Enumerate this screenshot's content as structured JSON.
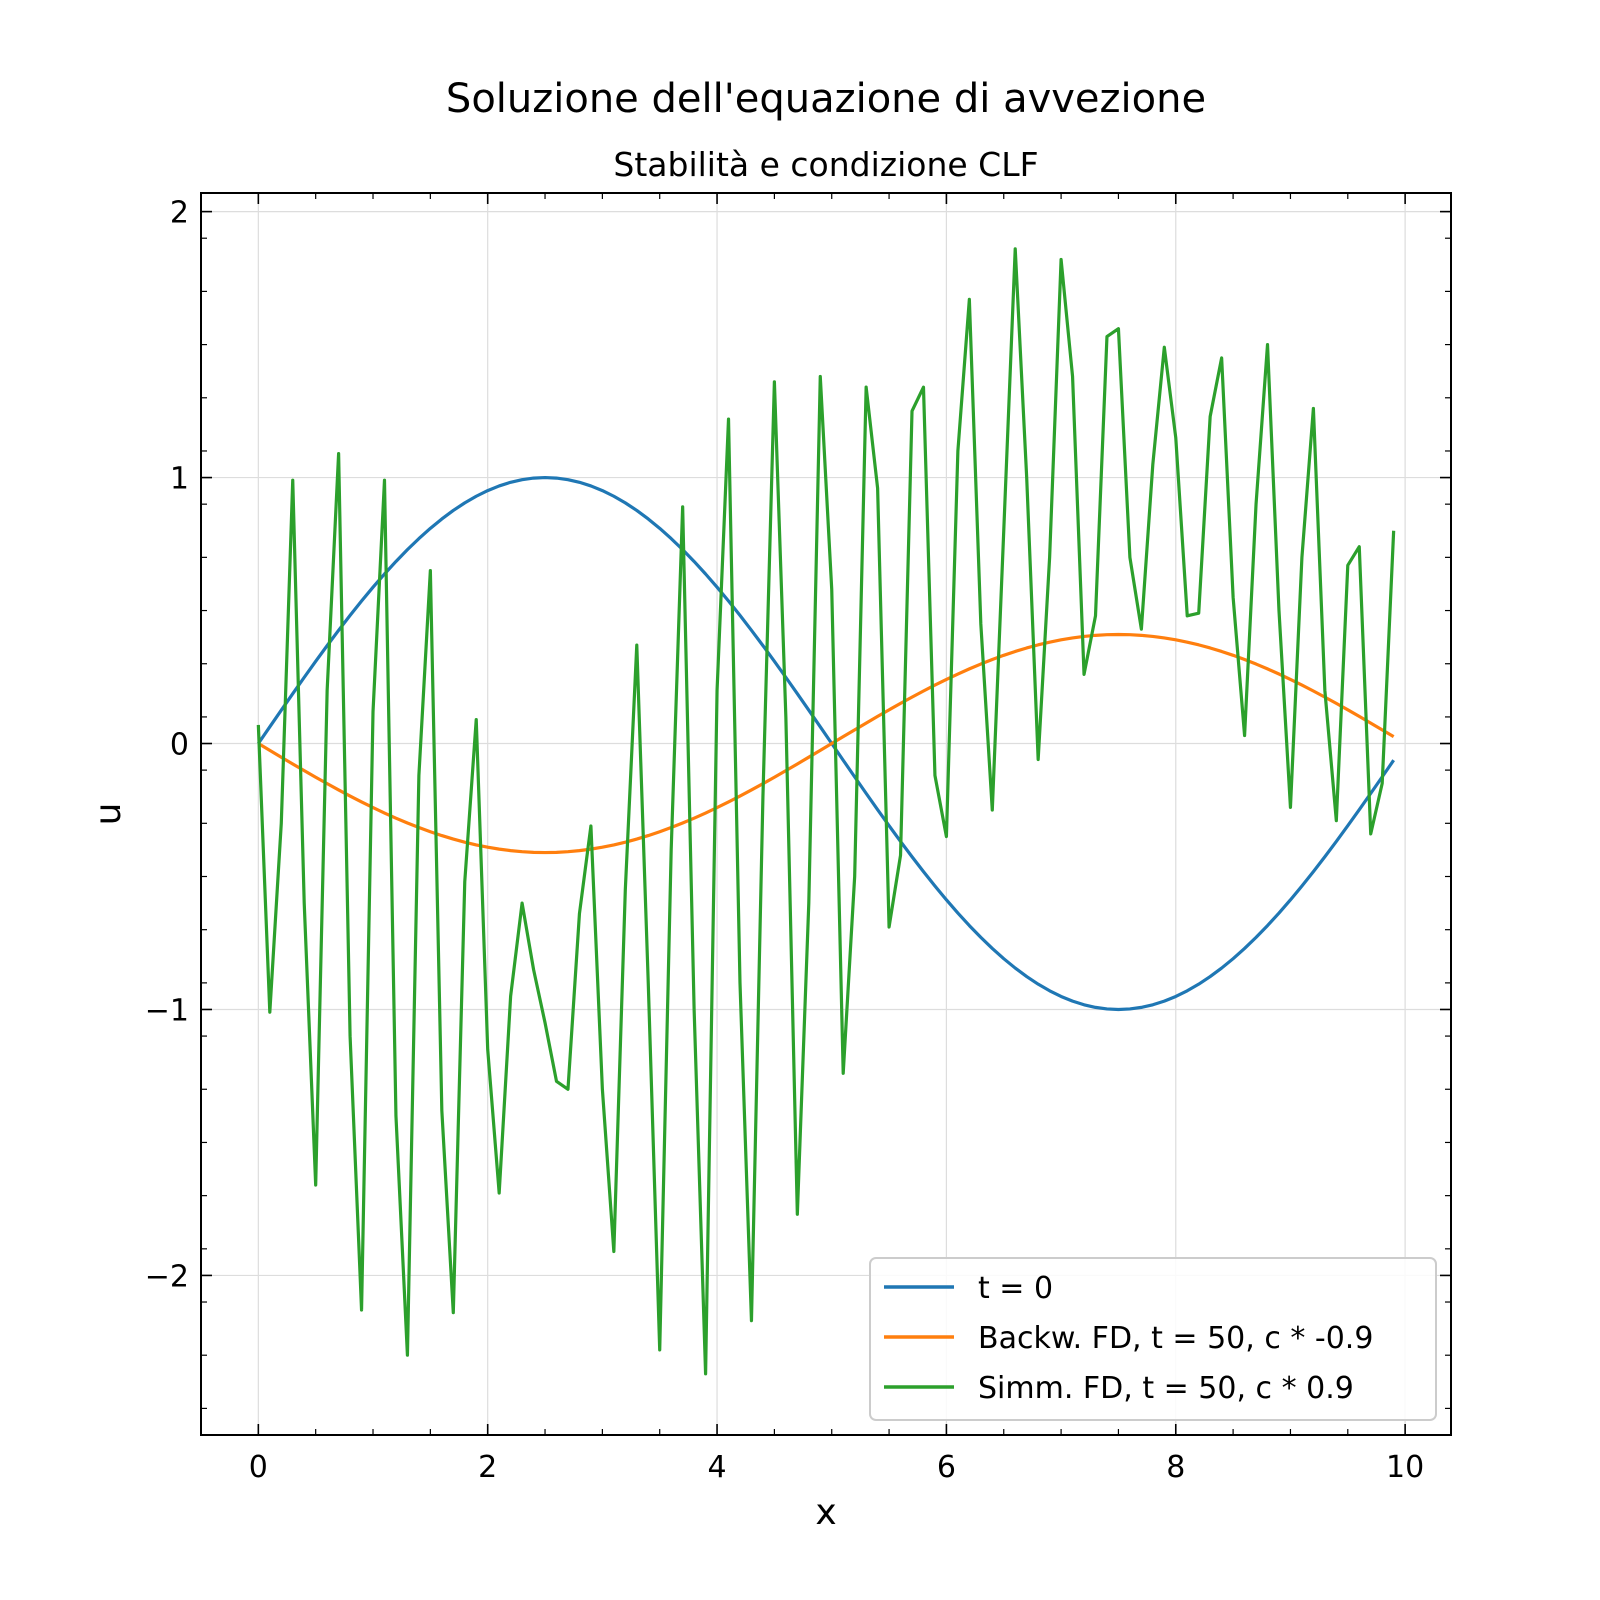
{
  "chart_data": {
    "type": "line",
    "title": "Soluzione dell'equazione di avvezione",
    "subtitle": "Stabilità e condizione CLF",
    "xlabel": "x",
    "ylabel": "u",
    "xlim": [
      -0.5,
      10.4
    ],
    "ylim": [
      -2.6,
      2.07
    ],
    "xticks": [
      0,
      2,
      4,
      6,
      8,
      10
    ],
    "xtick_labels": [
      "0",
      "2",
      "4",
      "6",
      "8",
      "10"
    ],
    "yticks": [
      -2,
      -1,
      0,
      1,
      2
    ],
    "ytick_labels": [
      "−2",
      "−1",
      "0",
      "1",
      "2"
    ],
    "grid": true,
    "legend_position": "lower-right",
    "series": [
      {
        "name": "t = 0",
        "color": "#1f77b4",
        "function": "sin(2*pi*x/10)",
        "x": [
          0.0,
          0.5,
          1.0,
          1.5,
          2.0,
          2.5,
          3.0,
          3.5,
          4.0,
          4.5,
          5.0,
          5.5,
          6.0,
          6.5,
          7.0,
          7.5,
          8.0,
          8.5,
          9.0,
          9.5,
          9.9
        ],
        "values": [
          0.0,
          0.309,
          0.588,
          0.809,
          0.951,
          1.0,
          0.951,
          0.809,
          0.588,
          0.309,
          0.0,
          -0.309,
          -0.588,
          -0.809,
          -0.951,
          -1.0,
          -0.951,
          -0.809,
          -0.588,
          -0.309,
          -0.063
        ]
      },
      {
        "name": "Backw. FD, t = 50, c * -0.9",
        "color": "#ff7f0e",
        "function": "-0.41*sin(2*pi*x/10)",
        "x": [
          0.0,
          0.5,
          1.0,
          1.5,
          2.0,
          2.5,
          3.0,
          3.5,
          4.0,
          4.5,
          5.0,
          5.5,
          6.0,
          6.5,
          7.0,
          7.5,
          8.0,
          8.5,
          9.0,
          9.5,
          9.9
        ],
        "values": [
          0.0,
          -0.127,
          -0.241,
          -0.332,
          -0.39,
          -0.41,
          -0.39,
          -0.332,
          -0.241,
          -0.127,
          0.0,
          0.127,
          0.241,
          0.332,
          0.39,
          0.41,
          0.39,
          0.332,
          0.241,
          0.127,
          0.026
        ]
      },
      {
        "name": "Simm. FD, t = 50, c * 0.9",
        "color": "#2ca02c",
        "x": [
          0.0,
          0.1,
          0.2,
          0.3,
          0.4,
          0.5,
          0.6,
          0.7,
          0.8,
          0.9,
          1.0,
          1.1,
          1.2,
          1.3,
          1.4,
          1.5,
          1.6,
          1.7,
          1.8,
          1.9,
          2.0,
          2.1,
          2.2,
          2.3,
          2.4,
          2.5,
          2.6,
          2.7,
          2.8,
          2.9,
          3.0,
          3.1,
          3.2,
          3.3,
          3.4,
          3.5,
          3.6,
          3.7,
          3.8,
          3.9,
          4.0,
          4.1,
          4.2,
          4.3,
          4.4,
          4.5,
          4.6,
          4.7,
          4.8,
          4.9,
          5.0,
          5.1,
          5.2,
          5.3,
          5.4,
          5.5,
          5.6,
          5.7,
          5.8,
          5.9,
          6.0,
          6.1,
          6.2,
          6.3,
          6.4,
          6.5,
          6.6,
          6.7,
          6.8,
          6.9,
          7.0,
          7.1,
          7.2,
          7.3,
          7.4,
          7.5,
          7.6,
          7.7,
          7.8,
          7.9,
          8.0,
          8.1,
          8.2,
          8.3,
          8.4,
          8.5,
          8.6,
          8.7,
          8.8,
          8.9,
          9.0,
          9.1,
          9.2,
          9.3,
          9.4,
          9.5,
          9.6,
          9.7,
          9.8,
          9.9
        ],
        "values": [
          0.07,
          -1.01,
          -0.3,
          0.99,
          -0.6,
          -1.66,
          0.2,
          1.09,
          -1.1,
          -2.13,
          0.12,
          0.99,
          -1.4,
          -2.3,
          -0.12,
          0.65,
          -1.38,
          -2.14,
          -0.52,
          0.09,
          -1.15,
          -1.69,
          -0.95,
          -0.6,
          -0.85,
          -1.05,
          -1.27,
          -1.3,
          -0.64,
          -0.31,
          -1.3,
          -1.91,
          -0.55,
          0.37,
          -0.9,
          -2.28,
          -0.4,
          0.89,
          -1.0,
          -2.37,
          0.2,
          1.22,
          -0.9,
          -2.17,
          -0.2,
          1.36,
          0.1,
          -1.77,
          -0.6,
          1.38,
          0.58,
          -1.24,
          -0.5,
          1.34,
          0.96,
          -0.69,
          -0.42,
          1.25,
          1.34,
          -0.12,
          -0.35,
          1.1,
          1.67,
          0.45,
          -0.25,
          0.8,
          1.86,
          1.0,
          -0.06,
          0.7,
          1.82,
          1.38,
          0.26,
          0.48,
          1.53,
          1.56,
          0.7,
          0.43,
          1.05,
          1.49,
          1.15,
          0.48,
          0.49,
          1.23,
          1.45,
          0.55,
          0.03,
          0.9,
          1.5,
          0.5,
          -0.24,
          0.7,
          1.26,
          0.2,
          -0.29,
          0.67,
          0.74,
          -0.34,
          -0.15,
          0.8
        ]
      }
    ]
  }
}
